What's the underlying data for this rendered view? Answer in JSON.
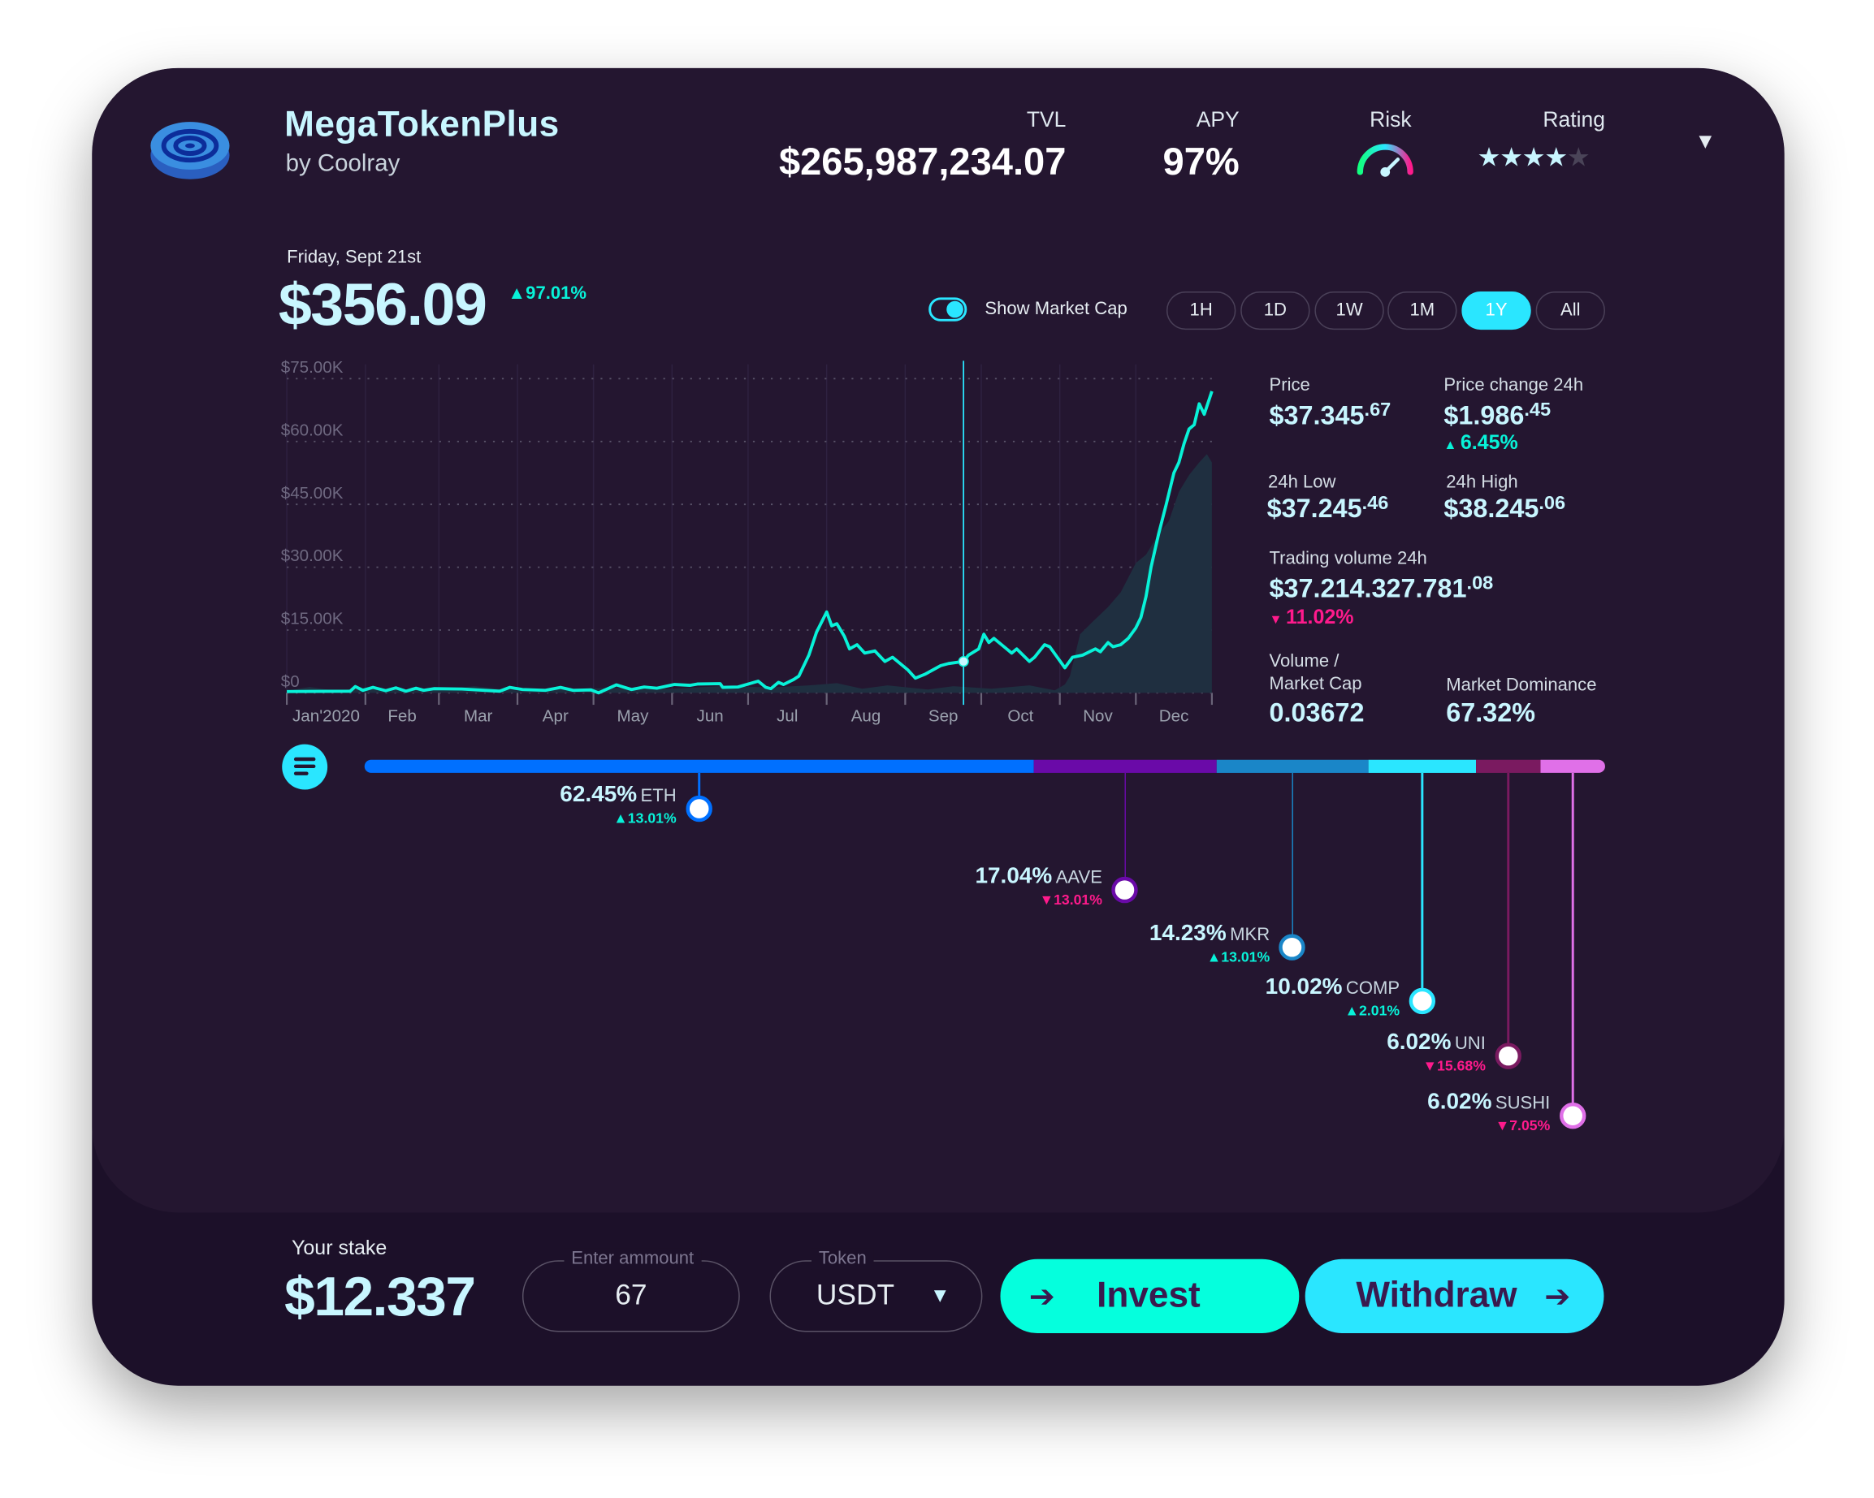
{
  "header": {
    "app_name": "MegaTokenPlus",
    "author": "by Coolray",
    "tvl_label": "TVL",
    "tvl_value": "$265,987,234.07",
    "apy_label": "APY",
    "apy_value": "97%",
    "risk_label": "Risk",
    "risk_level": 0.75,
    "rating_label": "Rating",
    "rating": 4,
    "rating_max": 5,
    "logo_icon": "coin-target-icon",
    "menu_icon": "triangle-down-icon"
  },
  "price_block": {
    "date": "Friday, Sept 21st",
    "price": "$356.09",
    "change": "97.01%",
    "change_direction": "up"
  },
  "controls": {
    "show_market_cap_label": "Show Market Cap",
    "show_market_cap": true,
    "timeframes": [
      "1H",
      "1D",
      "1W",
      "1M",
      "1Y",
      "All"
    ],
    "active_timeframe": "1Y"
  },
  "stats": {
    "price_label": "Price",
    "price_main": "$37.345",
    "price_dec": ".67",
    "change_label": "Price change 24h",
    "change_main": "$1.986",
    "change_dec": ".45",
    "change_pct": "6.45%",
    "low_label": "24h Low",
    "low_main": "$37.245",
    "low_dec": ".46",
    "high_label": "24h High",
    "high_main": "$38.245",
    "high_dec": ".06",
    "volume_label": "Trading volume 24h",
    "volume_main": "$37.214.327.781",
    "volume_dec": ".08",
    "volume_pct": "11.02%",
    "vmc_label_1": "Volume /",
    "vmc_label_2": "Market Cap",
    "vmc_value": "0.03672",
    "dominance_label": "Market Dominance",
    "dominance_value": "67.32%"
  },
  "colors": {
    "background": "#241630",
    "accent_teal": "#05ffdd",
    "accent_cyan": "#2ae6ff",
    "up": "#08f2d8",
    "down": "#ff1a8c",
    "text": "#c8f6ff"
  },
  "chart_data": {
    "type": "line",
    "xlabel": "",
    "ylabel": "",
    "ylim": [
      0,
      75
    ],
    "yticks": [
      "$0",
      "$15.00K",
      "$30.00K",
      "$45.00K",
      "$60.00K",
      "$75.00K"
    ],
    "ytick_values": [
      0,
      15,
      30,
      45,
      60,
      75
    ],
    "xtick_labels": [
      "Jan'2020",
      "Feb",
      "Mar",
      "Apr",
      "May",
      "Jun",
      "Jul",
      "Aug",
      "Sep",
      "Oct",
      "Nov",
      "Dec"
    ],
    "xlim": [
      "2020-01-01",
      "2020-12-31"
    ],
    "grid": true,
    "cursor_date": "2020-09-24",
    "series": [
      {
        "type": "line",
        "color": "#08f2d8",
        "points": [
          [
            "2020-01-01",
            0.3
          ],
          [
            "2020-01-26",
            0.4
          ],
          [
            "2020-01-28",
            1.5
          ],
          [
            "2020-01-31",
            0.6
          ],
          [
            "2020-02-04",
            1.3
          ],
          [
            "2020-02-09",
            0.5
          ],
          [
            "2020-02-13",
            1.2
          ],
          [
            "2020-02-17",
            0.4
          ],
          [
            "2020-02-21",
            1.1
          ],
          [
            "2020-02-24",
            0.6
          ],
          [
            "2020-02-28",
            1.0
          ],
          [
            "2020-03-10",
            0.9
          ],
          [
            "2020-03-25",
            0.4
          ],
          [
            "2020-03-29",
            1.3
          ],
          [
            "2020-04-03",
            0.8
          ],
          [
            "2020-04-12",
            0.6
          ],
          [
            "2020-04-18",
            1.3
          ],
          [
            "2020-04-23",
            0.6
          ],
          [
            "2020-04-30",
            0.7
          ],
          [
            "2020-05-03",
            0.0
          ],
          [
            "2020-05-10",
            1.9
          ],
          [
            "2020-05-16",
            0.8
          ],
          [
            "2020-05-21",
            1.4
          ],
          [
            "2020-05-26",
            1.1
          ],
          [
            "2020-06-02",
            2.0
          ],
          [
            "2020-06-08",
            1.8
          ],
          [
            "2020-06-11",
            2.1
          ],
          [
            "2020-06-20",
            2.2
          ],
          [
            "2020-06-21",
            1.3
          ],
          [
            "2020-06-27",
            1.4
          ],
          [
            "2020-07-05",
            2.8
          ],
          [
            "2020-07-08",
            1.3
          ],
          [
            "2020-07-10",
            1.0
          ],
          [
            "2020-07-13",
            2.5
          ],
          [
            "2020-07-15",
            2.0
          ],
          [
            "2020-07-19",
            3.2
          ],
          [
            "2020-07-21",
            4.0
          ],
          [
            "2020-07-25",
            9.0
          ],
          [
            "2020-07-28",
            14.5
          ],
          [
            "2020-08-01",
            19.3
          ],
          [
            "2020-08-03",
            16.0
          ],
          [
            "2020-08-05",
            16.5
          ],
          [
            "2020-08-08",
            13.5
          ],
          [
            "2020-08-10",
            10.5
          ],
          [
            "2020-08-13",
            11.5
          ],
          [
            "2020-08-16",
            9.5
          ],
          [
            "2020-08-20",
            10.0
          ],
          [
            "2020-08-24",
            7.5
          ],
          [
            "2020-08-27",
            8.5
          ],
          [
            "2020-09-02",
            5.5
          ],
          [
            "2020-09-05",
            3.5
          ],
          [
            "2020-09-09",
            4.5
          ],
          [
            "2020-09-15",
            6.5
          ],
          [
            "2020-09-18",
            7.0
          ],
          [
            "2020-09-24",
            7.5
          ],
          [
            "2020-09-26",
            9.0
          ],
          [
            "2020-09-30",
            10.5
          ],
          [
            "2020-10-02",
            14.0
          ],
          [
            "2020-10-04",
            12.0
          ],
          [
            "2020-10-06",
            13.0
          ],
          [
            "2020-10-10",
            11.0
          ],
          [
            "2020-10-13",
            9.5
          ],
          [
            "2020-10-15",
            10.5
          ],
          [
            "2020-10-20",
            7.5
          ],
          [
            "2020-10-22",
            8.5
          ],
          [
            "2020-10-26",
            11.5
          ],
          [
            "2020-10-28",
            11.0
          ],
          [
            "2020-11-03",
            6.0
          ],
          [
            "2020-11-06",
            8.5
          ],
          [
            "2020-11-10",
            9.0
          ],
          [
            "2020-11-15",
            10.5
          ],
          [
            "2020-11-17",
            9.8
          ],
          [
            "2020-11-20",
            12.0
          ],
          [
            "2020-11-22",
            11.0
          ],
          [
            "2020-11-25",
            11.5
          ],
          [
            "2020-11-28",
            13.0
          ],
          [
            "2020-12-01",
            15.5
          ],
          [
            "2020-12-03",
            18.0
          ],
          [
            "2020-12-05",
            23.0
          ],
          [
            "2020-12-07",
            30.0
          ],
          [
            "2020-12-10",
            38.0
          ],
          [
            "2020-12-13",
            45.0
          ],
          [
            "2020-12-16",
            52.5
          ],
          [
            "2020-12-18",
            55.0
          ],
          [
            "2020-12-20",
            59.5
          ],
          [
            "2020-12-22",
            63.0
          ],
          [
            "2020-12-24",
            64.0
          ],
          [
            "2020-12-26",
            69.0
          ],
          [
            "2020-12-28",
            66.5
          ],
          [
            "2020-12-31",
            72.0
          ]
        ]
      },
      {
        "type": "area",
        "color": "#1f2f40",
        "points": [
          [
            "2020-01-01",
            0.5
          ],
          [
            "2020-01-10",
            1.4
          ],
          [
            "2020-01-20",
            0.5
          ],
          [
            "2020-02-01",
            1.2
          ],
          [
            "2020-02-15",
            0.6
          ],
          [
            "2020-03-01",
            0.8
          ],
          [
            "2020-03-15",
            1.6
          ],
          [
            "2020-04-01",
            0.5
          ],
          [
            "2020-04-20",
            0.9
          ],
          [
            "2020-05-10",
            1.2
          ],
          [
            "2020-06-01",
            1.0
          ],
          [
            "2020-06-20",
            1.6
          ],
          [
            "2020-07-10",
            1.3
          ],
          [
            "2020-07-25",
            1.8
          ],
          [
            "2020-08-05",
            2.3
          ],
          [
            "2020-08-15",
            1.0
          ],
          [
            "2020-08-25",
            1.8
          ],
          [
            "2020-09-10",
            0.8
          ],
          [
            "2020-09-20",
            1.6
          ],
          [
            "2020-10-05",
            1.0
          ],
          [
            "2020-10-20",
            1.8
          ],
          [
            "2020-10-30",
            0.6
          ],
          [
            "2020-11-03",
            2.0
          ],
          [
            "2020-11-05",
            4.0
          ],
          [
            "2020-11-09",
            14.0
          ],
          [
            "2020-11-14",
            17.0
          ],
          [
            "2020-11-20",
            20.5
          ],
          [
            "2020-11-25",
            24.0
          ],
          [
            "2020-12-01",
            31.0
          ],
          [
            "2020-12-05",
            33.0
          ],
          [
            "2020-12-10",
            38.0
          ],
          [
            "2020-12-14",
            41.0
          ],
          [
            "2020-12-18",
            48.0
          ],
          [
            "2020-12-22",
            52.0
          ],
          [
            "2020-12-26",
            55.0
          ],
          [
            "2020-12-29",
            57.0
          ],
          [
            "2020-12-31",
            55.0
          ]
        ]
      }
    ]
  },
  "dominance": {
    "list_icon": "list-icon",
    "tokens": [
      {
        "symbol": "ETH",
        "pct": "62.45%",
        "value": 62.45,
        "change": "13.01%",
        "direction": "up",
        "color": "#0070ff"
      },
      {
        "symbol": "AAVE",
        "pct": "17.04%",
        "value": 17.04,
        "change": "13.01%",
        "direction": "down",
        "color": "#6a0aa8"
      },
      {
        "symbol": "MKR",
        "pct": "14.23%",
        "value": 14.23,
        "change": "13.01%",
        "direction": "up",
        "color": "#1a86c8"
      },
      {
        "symbol": "COMP",
        "pct": "10.02%",
        "value": 10.02,
        "change": "2.01%",
        "direction": "up",
        "color": "#2ae6ff"
      },
      {
        "symbol": "UNI",
        "pct": "6.02%",
        "value": 6.02,
        "change": "15.68%",
        "direction": "down",
        "color": "#7a1a60"
      },
      {
        "symbol": "SUSHI",
        "pct": "6.02%",
        "value": 6.02,
        "change": "7.05%",
        "direction": "down",
        "color": "#e070e8"
      }
    ]
  },
  "stake": {
    "label": "Your stake",
    "value": "$12.337",
    "amount_legend": "Enter ammount",
    "amount_value": "67",
    "token_legend": "Token",
    "token_value": "USDT",
    "invest_label": "Invest",
    "withdraw_label": "Withdraw"
  }
}
